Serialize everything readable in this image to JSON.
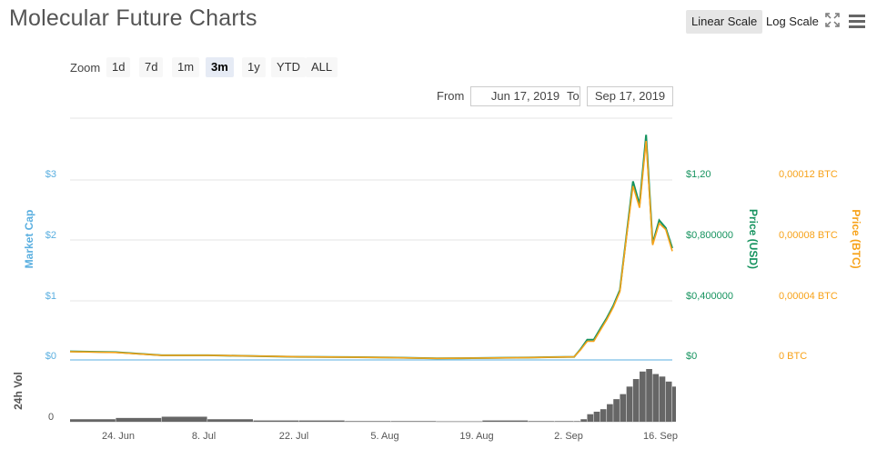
{
  "title": "Molecular Future Charts",
  "controls": {
    "linear_label": "Linear Scale",
    "log_label": "Log Scale",
    "fullscreen_icon": "expand-icon",
    "menu_icon": "hamburger-icon"
  },
  "zoom": {
    "label": "Zoom",
    "buttons": [
      "1d",
      "7d",
      "1m",
      "3m",
      "1y",
      "YTD",
      "ALL"
    ],
    "active": "3m"
  },
  "range": {
    "from_label": "From",
    "from_value": "Jun 17, 2019",
    "to_label": "To",
    "to_value": "Sep 17, 2019"
  },
  "colors": {
    "market_cap": "#5aafe0",
    "price_usd": "#16935f",
    "price_btc": "#f7a219",
    "volume": "#666666",
    "grid": "#e6e6e6"
  },
  "chart_data": {
    "type": "line",
    "xlabel": "",
    "x_ticks": [
      "24. Jun",
      "8. Jul",
      "22. Jul",
      "5. Aug",
      "19. Aug",
      "2. Sep",
      "16. Sep"
    ],
    "y_left": {
      "label": "Market Cap",
      "ticks": [
        "$0",
        "$1",
        "$2",
        "$3"
      ]
    },
    "y_usd": {
      "label": "Price (USD)",
      "ticks": [
        "$0",
        "$0,400000",
        "$0,800000",
        "$1,20"
      ],
      "range": [
        0,
        1.2
      ]
    },
    "y_btc": {
      "label": "Price (BTC)",
      "ticks": [
        "0 BTC",
        "0,00004 BTC",
        "0,00008 BTC",
        "0,00012 BTC"
      ],
      "range": [
        0,
        0.00012
      ]
    },
    "volume_axis": {
      "label": "24h Vol",
      "ticks": [
        "0"
      ]
    },
    "grid": true,
    "x": [
      "Jun 17",
      "Jun 24",
      "Jul 1",
      "Jul 8",
      "Jul 15",
      "Jul 22",
      "Jul 29",
      "Aug 5",
      "Aug 12",
      "Aug 19",
      "Aug 26",
      "Aug 30",
      "Sep 2",
      "Sep 3",
      "Sep 4",
      "Sep 5",
      "Sep 6",
      "Sep 7",
      "Sep 8",
      "Sep 9",
      "Sep 10",
      "Sep 11",
      "Sep 12",
      "Sep 13",
      "Sep 14",
      "Sep 15",
      "Sep 16",
      "Sep 17"
    ],
    "series": [
      {
        "name": "Price (USD)",
        "values": [
          0.055,
          0.05,
          0.03,
          0.03,
          0.025,
          0.02,
          0.018,
          0.015,
          0.01,
          0.012,
          0.015,
          0.018,
          0.02,
          0.07,
          0.13,
          0.13,
          0.2,
          0.27,
          0.35,
          0.45,
          0.8,
          1.15,
          1.0,
          1.45,
          0.75,
          0.9,
          0.85,
          0.72
        ]
      },
      {
        "name": "Price (BTC)",
        "values": [
          5.3e-06,
          4.8e-06,
          3e-06,
          3e-06,
          2.5e-06,
          2e-06,
          1.8e-06,
          1.5e-06,
          1e-06,
          1.2e-06,
          1.5e-06,
          1.8e-06,
          2e-06,
          6.6e-06,
          1.2e-05,
          1.2e-05,
          1.9e-05,
          2.6e-05,
          3.4e-05,
          4.4e-05,
          7.9e-05,
          0.000112,
          9.8e-05,
          0.000141,
          7.4e-05,
          8.8e-05,
          8.4e-05,
          7e-05
        ]
      }
    ],
    "volume": [
      2,
      3,
      4,
      2,
      1,
      1,
      0.5,
      0.5,
      0.3,
      1,
      0.5,
      0.5,
      0.5,
      2,
      6,
      8,
      10,
      14,
      18,
      22,
      28,
      34,
      40,
      42,
      38,
      36,
      32,
      28
    ]
  }
}
